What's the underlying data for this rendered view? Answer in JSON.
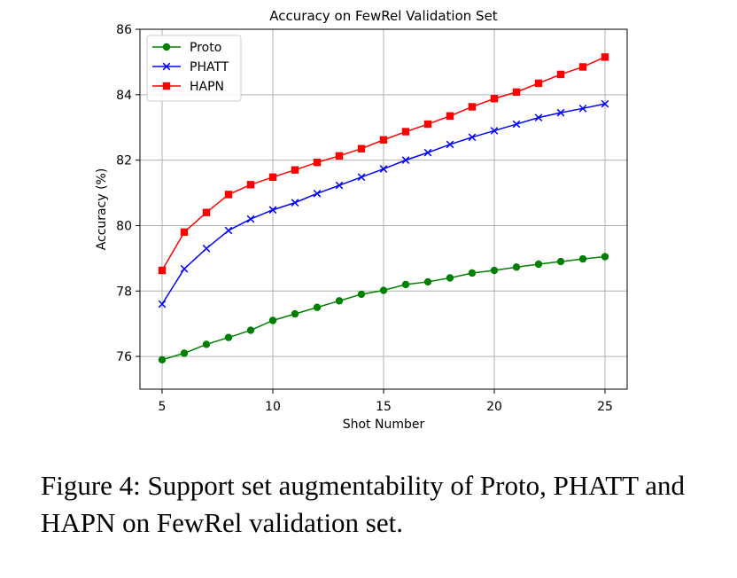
{
  "chart_data": {
    "type": "line",
    "title": "Accuracy on FewRel Validation Set",
    "xlabel": "Shot Number",
    "ylabel": "Accuracy (%)",
    "xlim": [
      4.0,
      26.0
    ],
    "ylim": [
      75.0,
      86.0
    ],
    "xticks": [
      5,
      10,
      15,
      20,
      25
    ],
    "yticks": [
      76,
      78,
      80,
      82,
      84,
      86
    ],
    "grid": true,
    "legend_position": "top-left",
    "x": [
      5,
      6,
      7,
      8,
      9,
      10,
      11,
      12,
      13,
      14,
      15,
      16,
      17,
      18,
      19,
      20,
      21,
      22,
      23,
      24,
      25
    ],
    "series": [
      {
        "name": "Proto",
        "color": "#008000",
        "marker": "circle",
        "values": [
          75.9,
          76.1,
          76.37,
          76.58,
          76.8,
          77.1,
          77.3,
          77.5,
          77.7,
          77.9,
          78.02,
          78.2,
          78.28,
          78.4,
          78.55,
          78.63,
          78.73,
          78.82,
          78.9,
          78.98,
          79.05
        ]
      },
      {
        "name": "PHATT",
        "color": "#0000ff",
        "marker": "x",
        "values": [
          77.6,
          78.68,
          79.3,
          79.85,
          80.2,
          80.48,
          80.7,
          80.98,
          81.23,
          81.48,
          81.73,
          82.0,
          82.23,
          82.48,
          82.7,
          82.9,
          83.1,
          83.3,
          83.45,
          83.58,
          83.72
        ]
      },
      {
        "name": "HAPN",
        "color": "#ff0000",
        "marker": "square",
        "values": [
          78.63,
          79.8,
          80.4,
          80.95,
          81.25,
          81.48,
          81.7,
          81.93,
          82.13,
          82.35,
          82.62,
          82.87,
          83.1,
          83.35,
          83.63,
          83.88,
          84.08,
          84.35,
          84.62,
          84.85,
          85.15
        ]
      }
    ]
  },
  "caption": "Figure 4: Support set augmentability of Proto, PHATT and HAPN on FewRel validation set."
}
